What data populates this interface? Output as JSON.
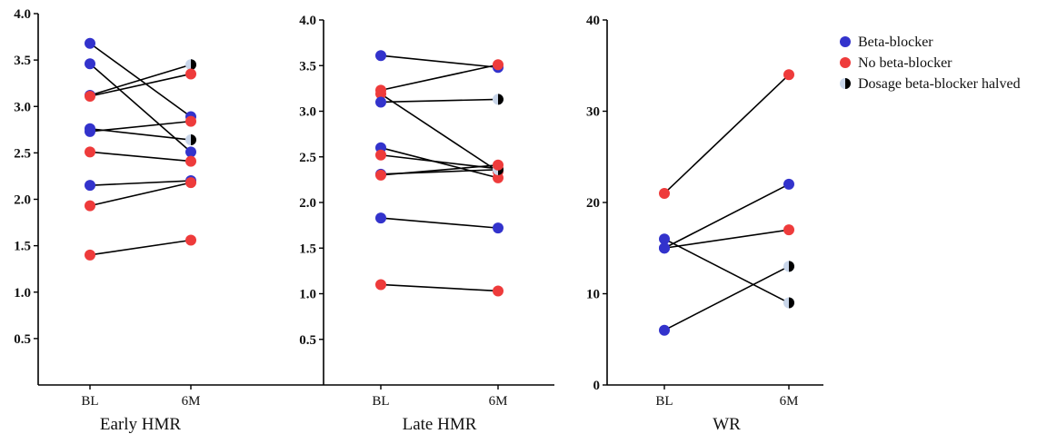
{
  "chart_data": [
    {
      "type": "line",
      "title": "Early HMR",
      "categories": [
        "BL",
        "6M"
      ],
      "ylim": [
        0,
        4.0
      ],
      "yticks": [
        "0.5",
        "1.0",
        "1.5",
        "2.0",
        "2.5",
        "3.0",
        "3.5",
        "4.0"
      ],
      "ytick_values": [
        0.5,
        1.0,
        1.5,
        2.0,
        2.5,
        3.0,
        3.5,
        4.0
      ],
      "pairs": [
        {
          "group": "beta",
          "bl": 3.68,
          "m6": 2.89
        },
        {
          "group": "beta",
          "bl": 3.46,
          "m6": 2.51
        },
        {
          "group": "beta",
          "bl": 3.12,
          "m6": 3.45,
          "m6_group": "halved"
        },
        {
          "group": "nobeta",
          "bl": 3.11,
          "m6": 3.35
        },
        {
          "group": "beta",
          "bl": 2.76,
          "m6": 2.64,
          "m6_group": "halved"
        },
        {
          "group": "beta",
          "bl": 2.73,
          "m6": 2.84,
          "m6_group": "nobeta"
        },
        {
          "group": "nobeta",
          "bl": 2.51,
          "m6": 2.41
        },
        {
          "group": "beta",
          "bl": 2.15,
          "m6": 2.2
        },
        {
          "group": "nobeta",
          "bl": 1.93,
          "m6": 2.18
        },
        {
          "group": "nobeta",
          "bl": 1.4,
          "m6": 1.56
        }
      ]
    },
    {
      "type": "line",
      "title": "Late HMR",
      "categories": [
        "BL",
        "6M"
      ],
      "ylim": [
        0,
        4.0
      ],
      "yticks": [
        "0.5",
        "1.0",
        "1.5",
        "2.0",
        "2.5",
        "3.0",
        "3.5",
        "4.0"
      ],
      "ytick_values": [
        0.5,
        1.0,
        1.5,
        2.0,
        2.5,
        3.0,
        3.5,
        4.0
      ],
      "pairs": [
        {
          "group": "beta",
          "bl": 3.61,
          "m6": 3.48
        },
        {
          "group": "nobeta",
          "bl": 3.23,
          "m6": 3.51
        },
        {
          "group": "nobeta",
          "bl": 3.19,
          "m6": 2.34
        },
        {
          "group": "beta",
          "bl": 3.1,
          "m6": 3.13,
          "m6_group": "halved"
        },
        {
          "group": "beta",
          "bl": 2.6,
          "m6": 2.27,
          "m6_group": "nobeta"
        },
        {
          "group": "nobeta",
          "bl": 2.52,
          "m6": 2.37
        },
        {
          "group": "beta",
          "bl": 2.31,
          "m6": 2.36,
          "m6_group": "halved"
        },
        {
          "group": "nobeta",
          "bl": 2.3,
          "m6": 2.41
        },
        {
          "group": "beta",
          "bl": 1.83,
          "m6": 1.72
        },
        {
          "group": "nobeta",
          "bl": 1.1,
          "m6": 1.03
        }
      ]
    },
    {
      "type": "line",
      "title": "WR",
      "categories": [
        "BL",
        "6M"
      ],
      "ylim": [
        0,
        40
      ],
      "yticks": [
        "0",
        "10",
        "20",
        "30",
        "40"
      ],
      "ytick_values": [
        0,
        10,
        20,
        30,
        40
      ],
      "pairs": [
        {
          "group": "nobeta",
          "bl": 21,
          "m6": 34
        },
        {
          "group": "beta",
          "bl": 16,
          "m6": 9,
          "m6_group": "halved"
        },
        {
          "group": "beta",
          "bl": 15,
          "m6": 22
        },
        {
          "group": "beta",
          "bl": 15,
          "m6": 17,
          "m6_group": "nobeta"
        },
        {
          "group": "beta",
          "bl": 6,
          "m6": 13,
          "m6_group": "halved"
        }
      ]
    }
  ],
  "legend": {
    "placement": "top-right",
    "items": [
      {
        "key": "beta",
        "label": "Beta-blocker"
      },
      {
        "key": "nobeta",
        "label": "No beta-blocker"
      },
      {
        "key": "halved",
        "label": "Dosage beta-blocker halved"
      }
    ]
  },
  "colors": {
    "beta": "#3333cc",
    "nobeta": "#ee3b3b",
    "halved_light": "#c9d6ea",
    "halved_dark": "#000000",
    "line": "#000000"
  }
}
